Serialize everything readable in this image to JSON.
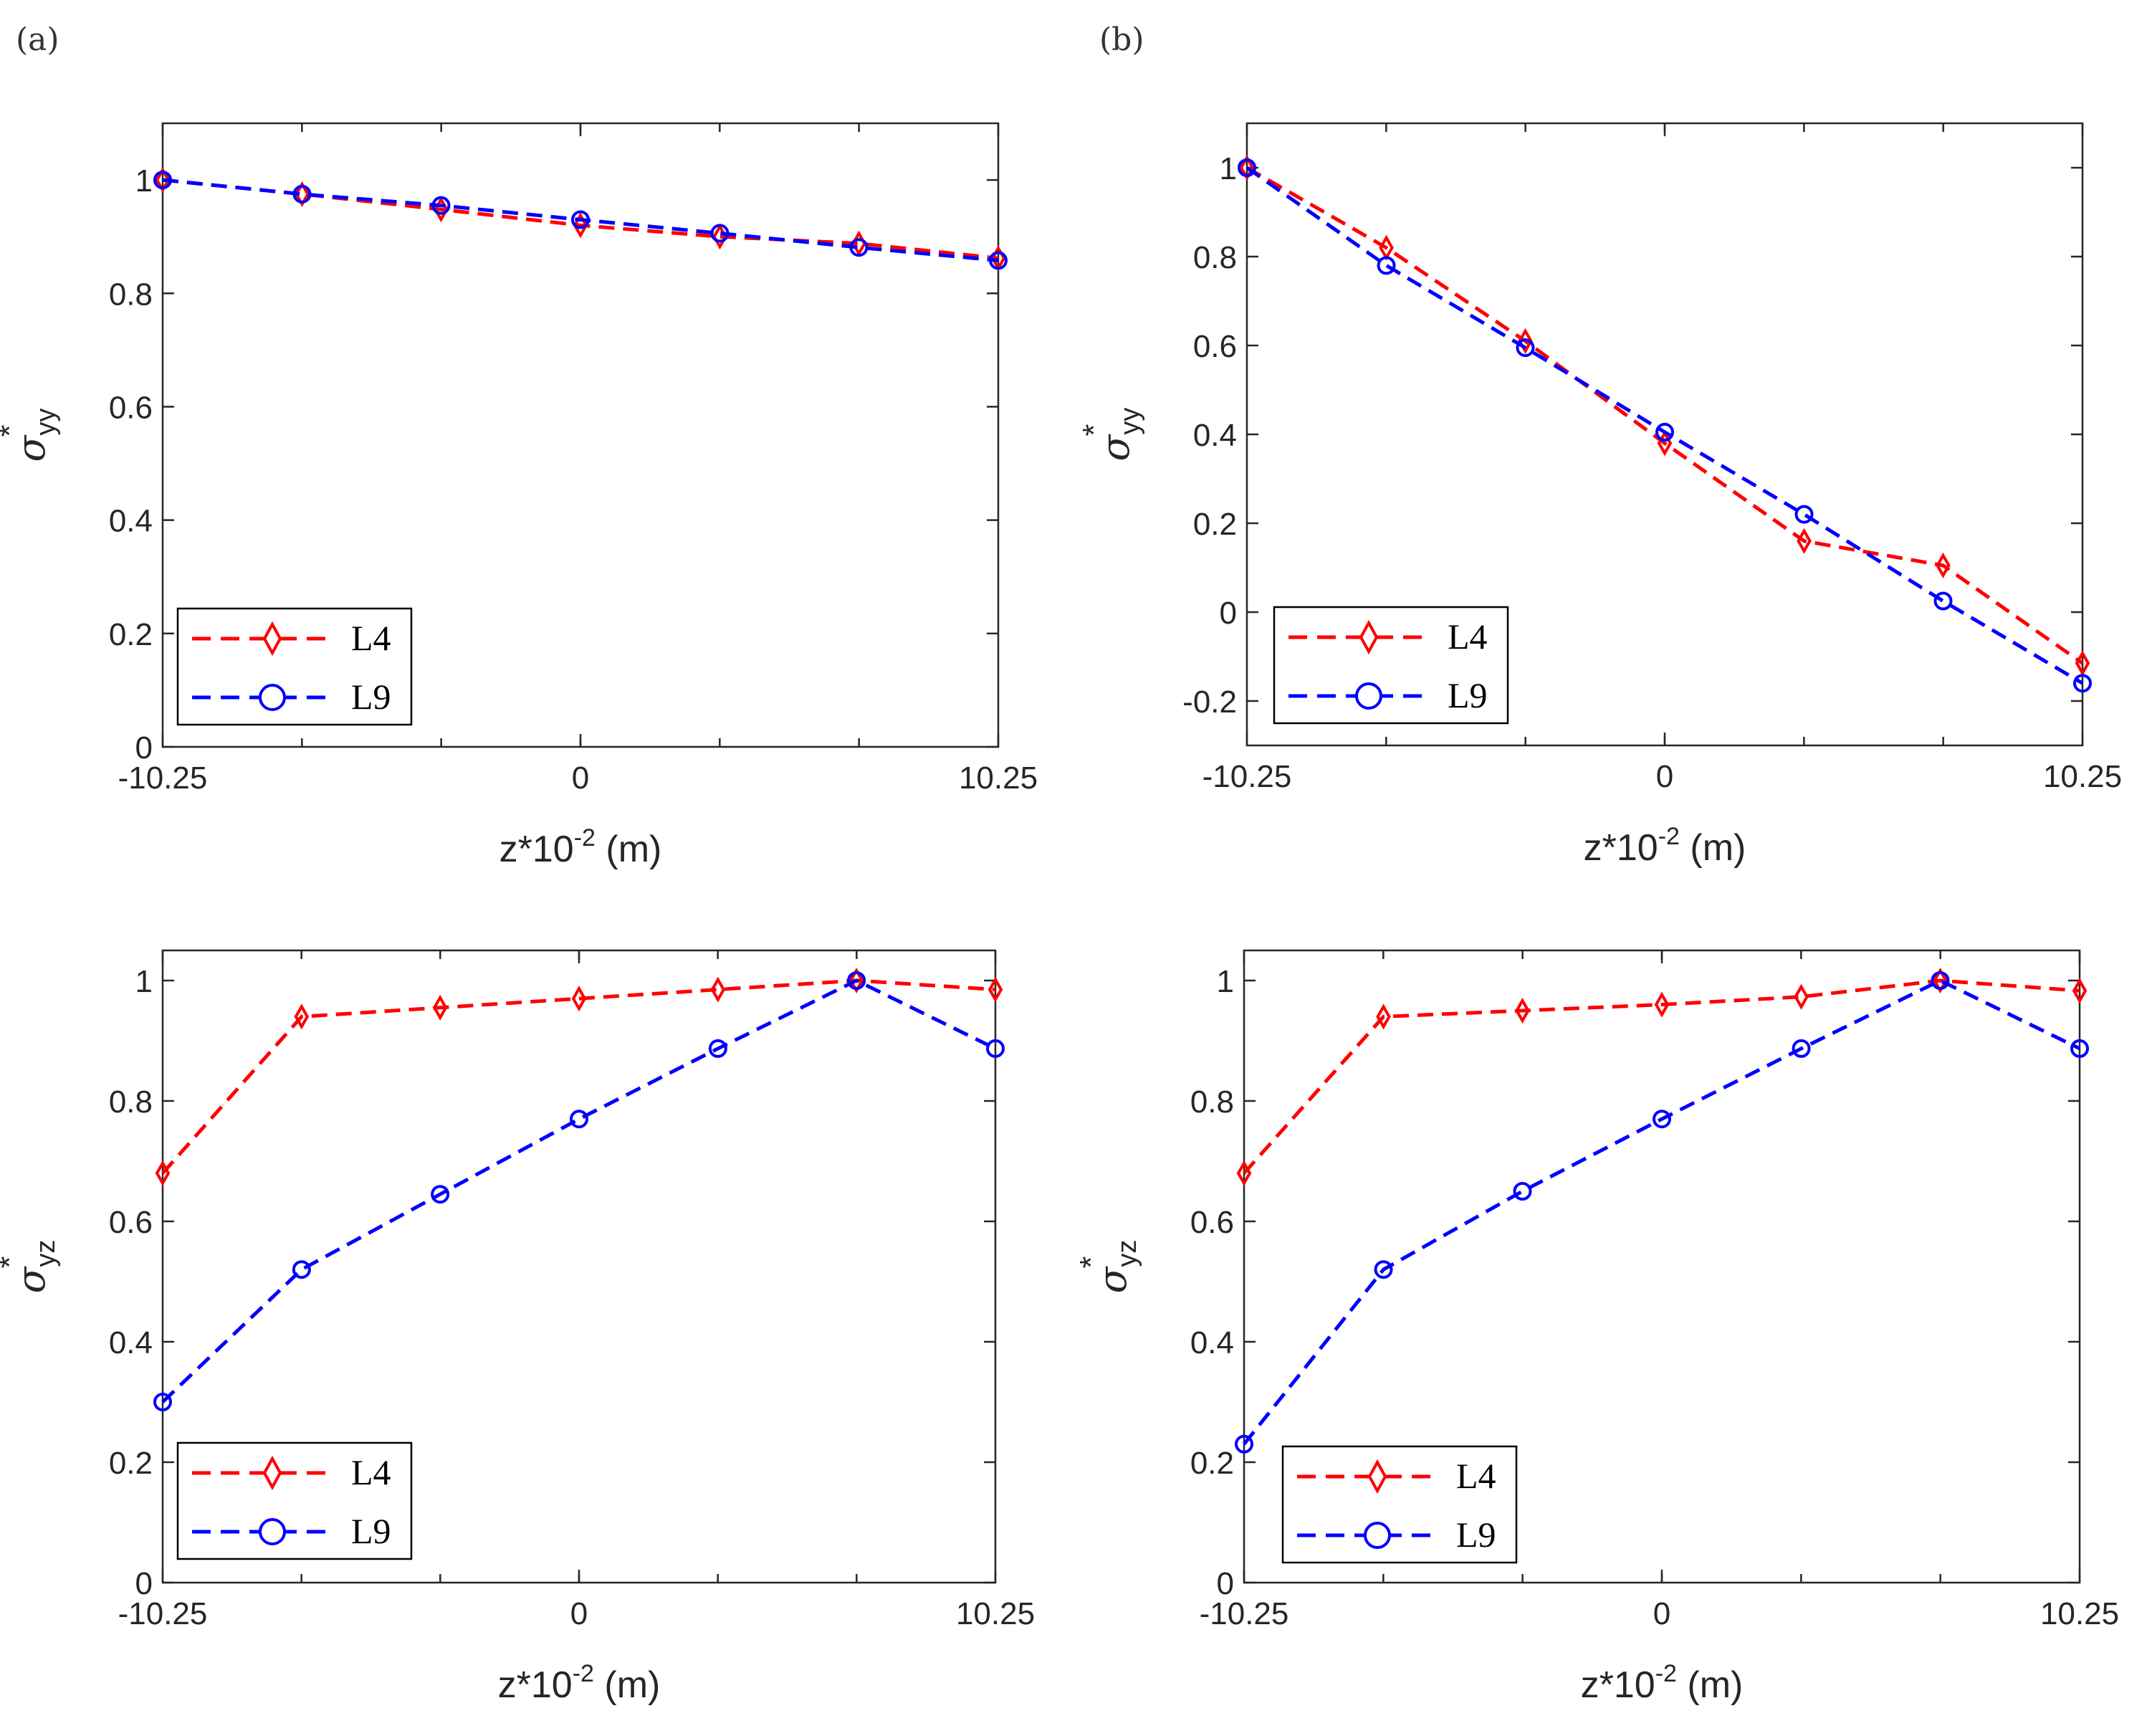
{
  "figure": {
    "panel_labels": [
      "(a)",
      "(b)"
    ]
  },
  "chart_data": [
    {
      "type": "line",
      "panel": "(a)",
      "xlabel_base": "z*10",
      "xlabel_exp": "-2",
      "xlabel_unit": " (m)",
      "ylabel_symbol": "σ",
      "ylabel_sub": "yy",
      "ylabel_star": "*",
      "xlim": [
        -10.25,
        10.25
      ],
      "ylim": [
        0,
        1.1
      ],
      "xticks": [
        -10.25,
        0,
        10.25
      ],
      "xtick_labels": [
        "-10.25",
        "0",
        "10.25"
      ],
      "yticks": [
        0,
        0.2,
        0.4,
        0.6,
        0.8,
        1
      ],
      "ytick_labels": [
        "0",
        "0.2",
        "0.4",
        "0.6",
        "0.8",
        "1"
      ],
      "legend_position": "bottom-left",
      "series": [
        {
          "name": "L4",
          "color": "#ff0000",
          "marker": "diamond",
          "x": [
            -10.25,
            -6.83,
            -3.42,
            0,
            3.42,
            6.83,
            10.25
          ],
          "y": [
            1.0,
            0.975,
            0.948,
            0.92,
            0.9,
            0.888,
            0.862
          ]
        },
        {
          "name": "L9",
          "color": "#0000ff",
          "marker": "circle",
          "x": [
            -10.25,
            -6.83,
            -3.42,
            0,
            3.42,
            6.83,
            10.25
          ],
          "y": [
            1.0,
            0.975,
            0.955,
            0.93,
            0.906,
            0.881,
            0.858
          ]
        }
      ]
    },
    {
      "type": "line",
      "panel": "(b)",
      "xlabel_base": "z*10",
      "xlabel_exp": "-2",
      "xlabel_unit": " (m)",
      "ylabel_symbol": "σ",
      "ylabel_sub": "yy",
      "ylabel_star": "*",
      "xlim": [
        -10.25,
        10.25
      ],
      "ylim": [
        -0.3,
        1.1
      ],
      "xticks": [
        -10.25,
        0,
        10.25
      ],
      "xtick_labels": [
        "-10.25",
        "0",
        "10.25"
      ],
      "yticks": [
        -0.2,
        0,
        0.2,
        0.4,
        0.6,
        0.8,
        1
      ],
      "ytick_labels": [
        "-0.2",
        "0",
        "0.2",
        "0.4",
        "0.6",
        "0.8",
        "1"
      ],
      "legend_position": "bottom-left",
      "series": [
        {
          "name": "L4",
          "color": "#ff0000",
          "marker": "diamond",
          "x": [
            -10.25,
            -6.83,
            -3.42,
            0,
            3.42,
            6.83,
            10.25
          ],
          "y": [
            1.0,
            0.82,
            0.61,
            0.38,
            0.16,
            0.105,
            -0.115
          ]
        },
        {
          "name": "L9",
          "color": "#0000ff",
          "marker": "circle",
          "x": [
            -10.25,
            -6.83,
            -3.42,
            0,
            3.42,
            6.83,
            10.25
          ],
          "y": [
            1.0,
            0.78,
            0.595,
            0.405,
            0.22,
            0.025,
            -0.16
          ]
        }
      ]
    },
    {
      "type": "line",
      "panel": "(a)",
      "xlabel_base": "z*10",
      "xlabel_exp": "-2",
      "xlabel_unit": " (m)",
      "ylabel_symbol": "σ",
      "ylabel_sub": "yz",
      "ylabel_star": "*",
      "xlim": [
        -10.25,
        10.25
      ],
      "ylim": [
        0,
        1.05
      ],
      "xticks": [
        -10.25,
        0,
        10.25
      ],
      "xtick_labels": [
        "-10.25",
        "0",
        "10.25"
      ],
      "yticks": [
        0,
        0.2,
        0.4,
        0.6,
        0.8,
        1
      ],
      "ytick_labels": [
        "0",
        "0.2",
        "0.4",
        "0.6",
        "0.8",
        "1"
      ],
      "legend_position": "bottom-left",
      "series": [
        {
          "name": "L4",
          "color": "#ff0000",
          "marker": "diamond",
          "x": [
            -10.25,
            -6.83,
            -3.42,
            0,
            3.42,
            6.83,
            10.25
          ],
          "y": [
            0.68,
            0.94,
            0.955,
            0.97,
            0.985,
            1.0,
            0.985
          ]
        },
        {
          "name": "L9",
          "color": "#0000ff",
          "marker": "circle",
          "x": [
            -10.25,
            -6.83,
            -3.42,
            0,
            3.42,
            6.83,
            10.25
          ],
          "y": [
            0.3,
            0.52,
            0.645,
            0.77,
            0.887,
            1.0,
            0.887
          ]
        }
      ]
    },
    {
      "type": "line",
      "panel": "(b)",
      "xlabel_base": "z*10",
      "xlabel_exp": "-2",
      "xlabel_unit": " (m)",
      "ylabel_symbol": "σ",
      "ylabel_sub": "yz",
      "ylabel_star": "*",
      "xlim": [
        -10.25,
        10.25
      ],
      "ylim": [
        0,
        1.05
      ],
      "xticks": [
        -10.25,
        0,
        10.25
      ],
      "xtick_labels": [
        "-10.25",
        "0",
        "10.25"
      ],
      "yticks": [
        0,
        0.2,
        0.4,
        0.6,
        0.8,
        1
      ],
      "ytick_labels": [
        "0",
        "0.2",
        "0.4",
        "0.6",
        "0.8",
        "1"
      ],
      "legend_position": "bottom-left",
      "series": [
        {
          "name": "L4",
          "color": "#ff0000",
          "marker": "diamond",
          "x": [
            -10.25,
            -6.83,
            -3.42,
            0,
            3.42,
            6.83,
            10.25
          ],
          "y": [
            0.68,
            0.94,
            0.95,
            0.96,
            0.973,
            1.0,
            0.983
          ]
        },
        {
          "name": "L9",
          "color": "#0000ff",
          "marker": "circle",
          "x": [
            -10.25,
            -6.83,
            -3.42,
            0,
            3.42,
            6.83,
            10.25
          ],
          "y": [
            0.23,
            0.52,
            0.65,
            0.77,
            0.887,
            1.0,
            0.887
          ]
        }
      ]
    }
  ]
}
